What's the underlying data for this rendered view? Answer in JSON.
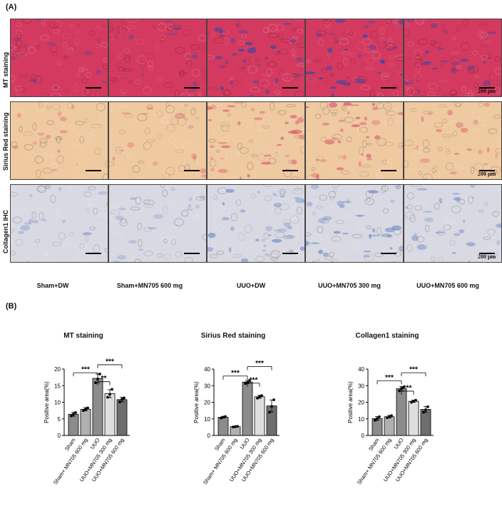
{
  "panel_a_label": "(A)",
  "panel_b_label": "(B)",
  "rows": [
    {
      "label": "MT staining",
      "base": "#d43a5f",
      "accent": "#3347a8",
      "scale_text": "200 μm"
    },
    {
      "label": "Sirius Red staining",
      "base": "#efc9a0",
      "accent": "#d9506a",
      "scale_text": "200 μm"
    },
    {
      "label": "Collagen1 IHC",
      "base": "#d9d9e3",
      "accent": "#6d8ac4",
      "scale_text": "200 μm"
    }
  ],
  "groups": [
    "Sham+DW",
    "Sham+MN705 600 mg",
    "UUO+DW",
    "UUO+MN705 300 mg",
    "UUO+MN705 600 mg"
  ],
  "chart_data": [
    {
      "type": "bar",
      "title": "MT staining",
      "ylabel": "Positive area(%)",
      "categories": [
        "Sham",
        "Sham+ MN705 600 mg",
        "UUO",
        "UUO+MN705 300 mg",
        "UUO+MN705 600 mg"
      ],
      "values": [
        6.4,
        7.9,
        17.2,
        12.6,
        10.8
      ],
      "errors": [
        0.6,
        0.5,
        1.3,
        1.2,
        0.7
      ],
      "points": [
        [
          5.9,
          6.4,
          6.9
        ],
        [
          7.5,
          7.9,
          8.3
        ],
        [
          15.9,
          17.0,
          18.5
        ],
        [
          11.5,
          12.4,
          13.9
        ],
        [
          10.1,
          10.9,
          11.3
        ]
      ],
      "ylim": [
        0,
        20
      ],
      "yticks": [
        0,
        5,
        10,
        15,
        20
      ],
      "bar_colors": [
        "#8c8c8c",
        "#b0b0b0",
        "#8c8c8c",
        "#dedede",
        "#6e6e6e"
      ],
      "significance": [
        {
          "from": 0,
          "to": 2,
          "label": "***",
          "y": 18.9
        },
        {
          "from": 2,
          "to": 3,
          "label": "**",
          "y": 16.2
        },
        {
          "from": 2,
          "to": 4,
          "label": "***",
          "y": 21.3
        }
      ]
    },
    {
      "type": "bar",
      "title": "Sirius Red staining",
      "ylabel": "Positive area(%)",
      "categories": [
        "Sham",
        "Sham+ MN705 600 mg",
        "UUO",
        "UUO+MN705 300 mg",
        "UUO+MN705 600 mg"
      ],
      "values": [
        11.0,
        5.3,
        32.2,
        23.3,
        17.8
      ],
      "errors": [
        0.5,
        0.3,
        1.0,
        0.9,
        3.6
      ],
      "points": [
        [
          10.5,
          11.0,
          11.4
        ],
        [
          5.1,
          5.3,
          5.5
        ],
        [
          31.3,
          32.0,
          33.1
        ],
        [
          22.5,
          23.3,
          24.0
        ],
        [
          14.0,
          17.5,
          21.5
        ]
      ],
      "ylim": [
        0,
        40
      ],
      "yticks": [
        0,
        10,
        20,
        30,
        40
      ],
      "bar_colors": [
        "#8c8c8c",
        "#b0b0b0",
        "#8c8c8c",
        "#dedede",
        "#6e6e6e"
      ],
      "significance": [
        {
          "from": 0,
          "to": 2,
          "label": "***",
          "y": 35.8
        },
        {
          "from": 2,
          "to": 3,
          "label": "***",
          "y": 31.5
        },
        {
          "from": 2,
          "to": 4,
          "label": "***",
          "y": 41.5
        }
      ]
    },
    {
      "type": "bar",
      "title": "Collagen1 staining",
      "ylabel": "Positive area(%)",
      "categories": [
        "Sham",
        "Sham+ MN705 600 mg",
        "UUO",
        "UUO+MN705 300 mg",
        "UUO+MN705 600 mg"
      ],
      "values": [
        10.2,
        11.3,
        28.2,
        20.6,
        15.7
      ],
      "errors": [
        1.2,
        0.8,
        1.3,
        0.7,
        1.8
      ],
      "points": [
        [
          9.2,
          10.2,
          11.3
        ],
        [
          10.7,
          11.2,
          11.9
        ],
        [
          26.9,
          28.3,
          29.2
        ],
        [
          20.0,
          20.7,
          21.2
        ],
        [
          14.0,
          15.5,
          17.3
        ]
      ],
      "ylim": [
        0,
        40
      ],
      "yticks": [
        0,
        10,
        20,
        30,
        40
      ],
      "bar_colors": [
        "#8c8c8c",
        "#b0b0b0",
        "#8c8c8c",
        "#dedede",
        "#6e6e6e"
      ],
      "significance": [
        {
          "from": 0,
          "to": 2,
          "label": "***",
          "y": 33.0
        },
        {
          "from": 2,
          "to": 3,
          "label": "***",
          "y": 26.7
        },
        {
          "from": 2,
          "to": 4,
          "label": "***",
          "y": 37.8
        }
      ]
    }
  ]
}
